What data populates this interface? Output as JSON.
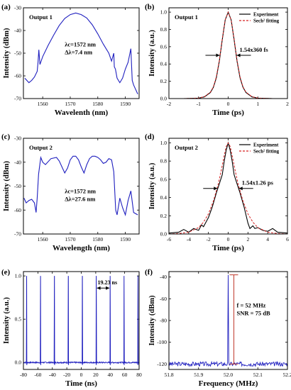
{
  "chart_data": [
    {
      "id": "a",
      "panel_label": "(a)",
      "type": "line",
      "title": "",
      "annotation": "Output 1",
      "xlabel": "Wavelenth (nm)",
      "ylabel": "Intensity (dBm)",
      "xlim": [
        1553,
        1595
      ],
      "ylim": [
        -70,
        -30
      ],
      "xticks": [
        1560,
        1570,
        1580,
        1590
      ],
      "yticks": [
        -70,
        -60,
        -50,
        -40,
        -30
      ],
      "texts": [
        "λc=1572 nm",
        "Δλ=7.4 nm"
      ],
      "series": [
        {
          "color": "#1f1fbf",
          "x": [
            1553.5,
            1555,
            1556,
            1557,
            1558,
            1558.3,
            1558.6,
            1559,
            1560,
            1562,
            1564,
            1566,
            1568,
            1570,
            1572,
            1574,
            1576,
            1578,
            1580,
            1582,
            1584,
            1585,
            1585.8,
            1586,
            1586.4,
            1587,
            1588,
            1589,
            1590,
            1591,
            1592,
            1592.5,
            1593,
            1594.5
          ],
          "y": [
            -61,
            -63,
            -62,
            -60.5,
            -58,
            -54,
            -48.5,
            -55,
            -51.5,
            -46.5,
            -42,
            -37.8,
            -34.7,
            -33,
            -32.3,
            -33,
            -34.5,
            -37.5,
            -41.5,
            -46,
            -50,
            -53.5,
            -50,
            -56,
            -57,
            -61,
            -63,
            -61,
            -57,
            -54,
            -48,
            -62,
            -64,
            -68
          ]
        }
      ]
    },
    {
      "id": "b",
      "panel_label": "(b)",
      "type": "line",
      "title": "",
      "annotation": "Output 1",
      "xlabel": "Time (ps)",
      "ylabel": "Intensity (a.u.)",
      "xlim": [
        -2,
        2
      ],
      "ylim": [
        0,
        1.05
      ],
      "xticks": [
        -2,
        -1,
        0,
        1,
        2
      ],
      "yticks": [
        0.0,
        0.2,
        0.4,
        0.6,
        0.8,
        1.0
      ],
      "texts": [
        "1.54x360 fs"
      ],
      "series": [
        {
          "name": "Experiment",
          "color": "#000000",
          "style": "solid",
          "x": [
            -2,
            -1.5,
            -1,
            -0.8,
            -0.6,
            -0.5,
            -0.4,
            -0.3,
            -0.2,
            -0.1,
            0,
            0.1,
            0.2,
            0.3,
            0.4,
            0.5,
            0.6,
            0.8,
            1,
            1.5,
            2
          ],
          "y": [
            0,
            0,
            0.005,
            0.02,
            0.07,
            0.13,
            0.24,
            0.43,
            0.68,
            0.91,
            1.0,
            0.91,
            0.68,
            0.43,
            0.24,
            0.13,
            0.07,
            0.02,
            0.005,
            0,
            0
          ]
        },
        {
          "name": "Sech² fitting",
          "color": "#d62020",
          "style": "dashed",
          "x": [
            -2,
            -1.5,
            -1,
            -0.8,
            -0.6,
            -0.5,
            -0.4,
            -0.3,
            -0.2,
            -0.1,
            0,
            0.1,
            0.2,
            0.3,
            0.4,
            0.5,
            0.6,
            0.8,
            1,
            1.5,
            2
          ],
          "y": [
            0,
            0,
            0.006,
            0.022,
            0.075,
            0.135,
            0.25,
            0.44,
            0.69,
            0.91,
            1.0,
            0.91,
            0.69,
            0.44,
            0.25,
            0.135,
            0.075,
            0.022,
            0.006,
            0,
            0
          ]
        }
      ]
    },
    {
      "id": "c",
      "panel_label": "(c)",
      "type": "line",
      "title": "",
      "annotation": "Output 2",
      "xlabel": "Wavelength (nm)",
      "ylabel": "Intensity (dBm)",
      "xlim": [
        1553,
        1595
      ],
      "ylim": [
        -70,
        -30
      ],
      "xticks": [
        1560,
        1570,
        1580,
        1590
      ],
      "yticks": [
        -70,
        -60,
        -50,
        -40,
        -30
      ],
      "texts": [
        "λc=1572 nm",
        "Δλ=27.6 nm"
      ],
      "series": [
        {
          "color": "#1f1fbf",
          "x": [
            1553.2,
            1554,
            1555,
            1556,
            1557,
            1557.6,
            1558,
            1558.5,
            1559.3,
            1560,
            1561,
            1563,
            1565,
            1566,
            1567,
            1568,
            1569,
            1570,
            1571,
            1572,
            1573,
            1574,
            1575,
            1576,
            1577,
            1578,
            1579,
            1580,
            1581,
            1582,
            1583,
            1584,
            1585,
            1585.8,
            1586.5,
            1587,
            1588,
            1589,
            1590,
            1591,
            1592,
            1593,
            1594.5
          ],
          "y": [
            -55,
            -57,
            -56,
            -55.5,
            -57,
            -61,
            -55,
            -45,
            -38,
            -40,
            -41,
            -38.5,
            -38,
            -39.5,
            -42,
            -44.5,
            -42.5,
            -39,
            -37.5,
            -37.5,
            -39,
            -42,
            -44.5,
            -41,
            -38.5,
            -37.5,
            -37.5,
            -38,
            -39,
            -40.5,
            -40,
            -38.5,
            -39,
            -44,
            -60,
            -62,
            -55,
            -59,
            -62,
            -56,
            -52,
            -61,
            -62
          ]
        }
      ]
    },
    {
      "id": "d",
      "panel_label": "(d)",
      "type": "line",
      "title": "",
      "annotation": "Output 2",
      "xlabel": "Time (ps)",
      "ylabel": "Intensity (a.u.)",
      "xlim": [
        -6,
        6
      ],
      "ylim": [
        0,
        1.05
      ],
      "xticks": [
        -6,
        -4,
        -2,
        0,
        2,
        4,
        6
      ],
      "yticks": [
        0.0,
        0.2,
        0.4,
        0.6,
        0.8,
        1.0
      ],
      "texts": [
        "1.54x1.26 ps"
      ],
      "series": [
        {
          "name": "Experiment",
          "color": "#000000",
          "style": "solid",
          "x": [
            -6,
            -5,
            -4.5,
            -4,
            -3.5,
            -3,
            -2.7,
            -2.5,
            -2.2,
            -2,
            -1.6,
            -1.2,
            -0.9,
            -0.6,
            -0.4,
            -0.2,
            0,
            0.2,
            0.4,
            0.6,
            0.9,
            1.2,
            1.6,
            2,
            2.2,
            2.5,
            2.7,
            3,
            3.5,
            4,
            4.5,
            5,
            6
          ],
          "y": [
            0.01,
            0.02,
            0.05,
            0.02,
            0.06,
            0.04,
            0.1,
            0.08,
            0.14,
            0.18,
            0.3,
            0.45,
            0.55,
            0.65,
            0.8,
            0.92,
            1.0,
            0.92,
            0.8,
            0.65,
            0.55,
            0.45,
            0.3,
            0.12,
            0.06,
            0.09,
            0.06,
            0.07,
            0.04,
            0.03,
            0.06,
            0.02,
            0.01
          ]
        },
        {
          "name": "Sech² fitting",
          "color": "#d62020",
          "style": "dashed",
          "x": [
            -6,
            -5,
            -4,
            -3,
            -2.5,
            -2,
            -1.5,
            -1,
            -0.7,
            -0.4,
            -0.2,
            0,
            0.2,
            0.4,
            0.7,
            1,
            1.5,
            2,
            2.5,
            3,
            4,
            5,
            6
          ],
          "y": [
            0,
            0.005,
            0.02,
            0.07,
            0.13,
            0.22,
            0.36,
            0.55,
            0.7,
            0.86,
            0.96,
            1.0,
            0.96,
            0.86,
            0.7,
            0.55,
            0.36,
            0.22,
            0.13,
            0.07,
            0.02,
            0.005,
            0
          ]
        }
      ]
    },
    {
      "id": "e",
      "panel_label": "(e)",
      "type": "line",
      "title": "",
      "xlabel": "Time (ns)",
      "ylabel": "Intensity (a.u.)",
      "xlim": [
        -80,
        80
      ],
      "ylim": [
        -0.08,
        1.05
      ],
      "xticks": [
        -80,
        -60,
        -40,
        -20,
        0,
        20,
        40,
        60,
        80
      ],
      "yticks": [
        0.0,
        0.5,
        1.0
      ],
      "texts": [
        "19.23 ns"
      ],
      "pulse_period_ns": 19.23,
      "pulse_peak": 1.0,
      "baseline": 0.0,
      "series": [
        {
          "color": "#1f1fbf"
        }
      ]
    },
    {
      "id": "f",
      "panel_label": "(f)",
      "type": "line",
      "title": "",
      "xlabel": "Frequency (MHz)",
      "ylabel": "Intensity (dBm)",
      "xlim": [
        51.8,
        52.2
      ],
      "ylim": [
        -125,
        -35
      ],
      "xticks": [
        51.8,
        51.9,
        52.0,
        52.1,
        52.2
      ],
      "yticks": [
        -120,
        -100,
        -80,
        -60,
        -40
      ],
      "texts": [
        "f = 52 MHz",
        "SNR = 75 dB"
      ],
      "peak_frequency": 52.0,
      "peak_level": -38,
      "noise_floor": -120,
      "series": [
        {
          "color": "#1f1fbf"
        }
      ]
    }
  ]
}
